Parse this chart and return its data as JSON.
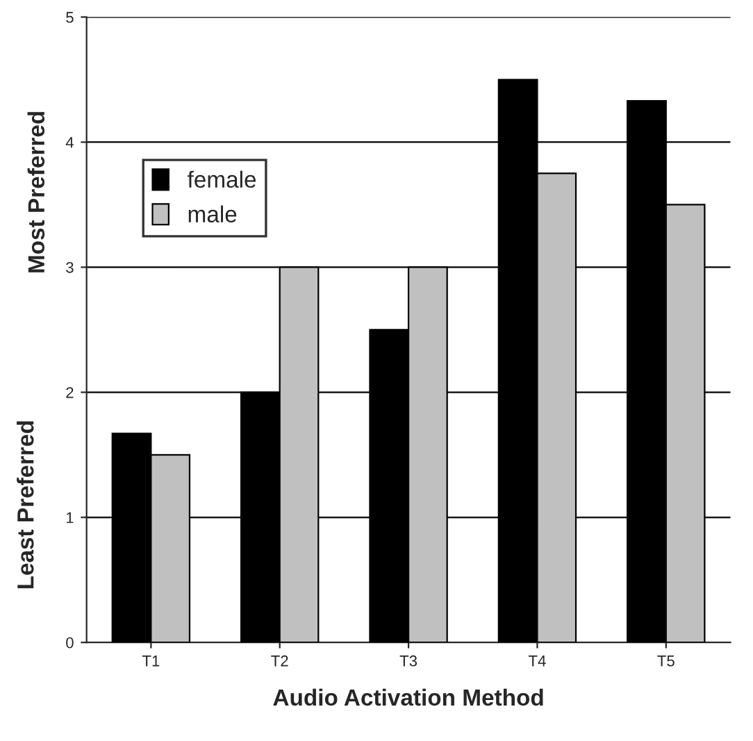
{
  "chart_data": {
    "type": "bar",
    "xlabel": "Audio Activation Method",
    "ylabel": "Least Preferred",
    "annotations": [
      "Most Preferred"
    ],
    "categories": [
      "T1",
      "T2",
      "T3",
      "T4",
      "T5"
    ],
    "series": [
      {
        "name": "female",
        "color": "#000000",
        "values": [
          1.67,
          2,
          2.5,
          4.5,
          4.33
        ]
      },
      {
        "name": "male",
        "color": "#c0c0c0",
        "values": [
          1.5,
          3,
          3,
          3.75,
          3.5
        ]
      }
    ],
    "ylim": [
      0,
      5
    ],
    "yticks": [
      0,
      1,
      2,
      3,
      4,
      5
    ],
    "grid": "y",
    "legend": "top left"
  }
}
